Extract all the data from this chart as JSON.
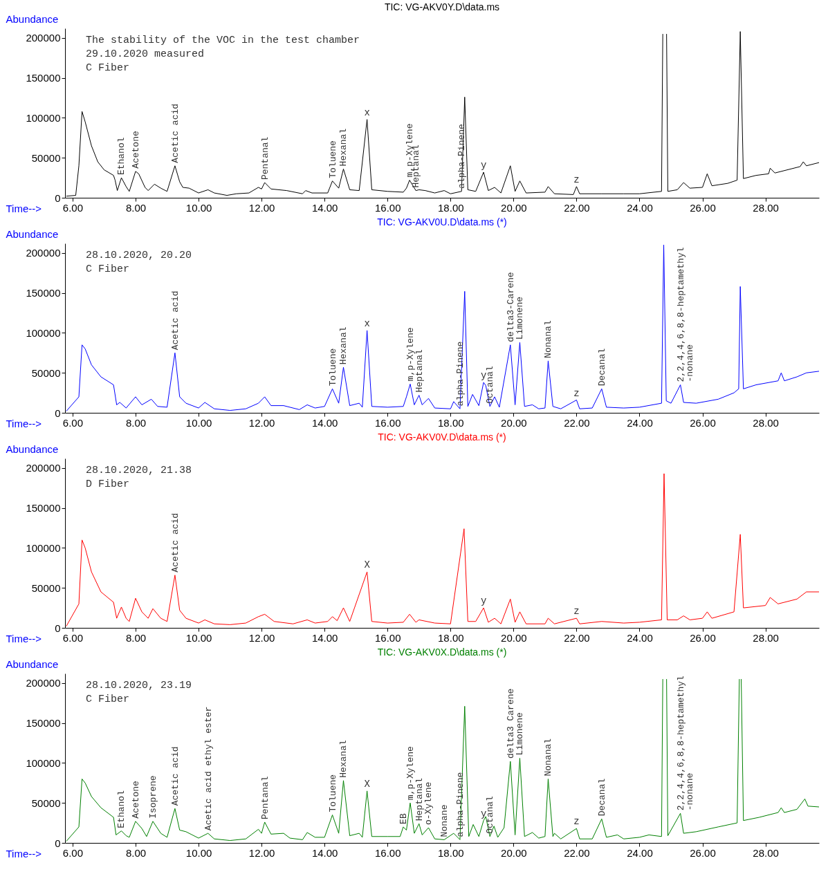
{
  "chart_data": [
    {
      "type": "line",
      "title": "TIC: VG-AKV0Y.D\\data.ms",
      "xlabel": "Time-->",
      "ylabel": "Abundance",
      "xlim": [
        5.76,
        29.7
      ],
      "ylim": [
        0,
        212000
      ],
      "xticks": [
        {
          "value": 6,
          "label": "6.00"
        },
        {
          "value": 8,
          "label": "8.00"
        },
        {
          "value": 10,
          "label": "10.00"
        },
        {
          "value": 12,
          "label": "12.00"
        },
        {
          "value": 14,
          "label": "14.00"
        },
        {
          "value": 16,
          "label": "16.00"
        },
        {
          "value": 18,
          "label": "18.00"
        },
        {
          "value": 20,
          "label": "20.00"
        },
        {
          "value": 22,
          "label": "22.00"
        },
        {
          "value": 24,
          "label": "24.00"
        },
        {
          "value": 26,
          "label": "26.00"
        },
        {
          "value": 28,
          "label": "28.00"
        }
      ],
      "yticks": [
        0,
        50000,
        100000,
        150000,
        200000
      ],
      "x": [
        5.8,
        6.1,
        6.2,
        6.3,
        6.4,
        6.6,
        6.8,
        7.0,
        7.3,
        7.35,
        7.42,
        7.55,
        7.7,
        7.8,
        8.0,
        8.1,
        8.3,
        8.4,
        8.6,
        8.8,
        9.0,
        9.25,
        9.4,
        9.5,
        9.7,
        10.0,
        10.3,
        10.5,
        10.9,
        11.2,
        11.6,
        11.9,
        12.0,
        12.1,
        12.3,
        12.8,
        13.3,
        13.4,
        13.6,
        14.1,
        14.25,
        14.45,
        14.6,
        14.8,
        15.1,
        15.35,
        15.5,
        16.0,
        16.5,
        16.6,
        16.7,
        16.9,
        17.0,
        17.2,
        17.5,
        17.8,
        18.0,
        18.35,
        18.45,
        18.55,
        18.8,
        19.05,
        19.2,
        19.4,
        19.6,
        19.9,
        20.05,
        20.2,
        20.4,
        21.0,
        21.1,
        21.3,
        21.9,
        22.0,
        22.1,
        22.8,
        23.5,
        24.0,
        24.7,
        24.74,
        24.8,
        24.86,
        24.9,
        25.2,
        25.4,
        25.6,
        26.0,
        26.15,
        26.3,
        26.8,
        27.1,
        27.2,
        27.3,
        27.7,
        28.1,
        28.15,
        28.3,
        28.8,
        29.1,
        29.2,
        29.3,
        29.7
      ],
      "series": [
        {
          "color": "#000000",
          "values": [
            2000,
            3000,
            40000,
            108000,
            95000,
            65000,
            45000,
            35000,
            28000,
            22000,
            9000,
            25000,
            14000,
            8000,
            33000,
            30000,
            13000,
            9000,
            17000,
            12000,
            8000,
            40000,
            20000,
            13000,
            12000,
            6000,
            10000,
            6000,
            3000,
            5000,
            6000,
            13000,
            11000,
            19000,
            11000,
            9000,
            5000,
            9000,
            6000,
            6000,
            21000,
            12000,
            36000,
            10000,
            9000,
            98000,
            10000,
            8000,
            7000,
            12000,
            22000,
            9000,
            10000,
            9000,
            6000,
            9000,
            5000,
            8000,
            126000,
            10000,
            8000,
            32000,
            9000,
            13000,
            6000,
            40000,
            8000,
            21000,
            6000,
            7000,
            14000,
            5000,
            4000,
            14000,
            5000,
            5000,
            5000,
            5000,
            8000,
            205000,
            null,
            205000,
            8000,
            10000,
            19000,
            12000,
            13000,
            30000,
            15000,
            18000,
            22000,
            208000,
            24000,
            28000,
            30000,
            37000,
            31000,
            36000,
            39000,
            45000,
            40000,
            44000
          ]
        }
      ],
      "annotations": [
        "The stability of the VOC in the test chamber",
        "29.10.2020 measured",
        "C Fiber",
        {
          "text": "Ethanol",
          "x": 7.55,
          "y": 25000
        },
        {
          "text": "Acetone",
          "x": 8.0,
          "y": 33000
        },
        {
          "text": "Acetic acid",
          "x": 9.25,
          "y": 40000
        },
        {
          "text": "Pentanal",
          "x": 12.1,
          "y": 19000
        },
        {
          "text": "Toluene",
          "x": 14.25,
          "y": 21000
        },
        {
          "text": "Hexanal",
          "x": 14.6,
          "y": 36000
        },
        {
          "text": "x",
          "x": 15.35,
          "y": 98000
        },
        {
          "text": "m,p-Xylene",
          "x": 16.7,
          "y": 22000
        },
        {
          "text": "Heptanal",
          "x": 16.9,
          "y": 9000
        },
        {
          "text": "alpha-Pinene",
          "x": 18.35,
          "y": 8000
        },
        {
          "text": "y",
          "x": 19.05,
          "y": 32000
        },
        {
          "text": "z",
          "x": 22.0,
          "y": 14000
        }
      ]
    },
    {
      "type": "line",
      "title": "TIC: VG-AKV0U.D\\data.ms (*)",
      "xlabel": "Time-->",
      "ylabel": "Abundance",
      "xlim": [
        5.76,
        29.7
      ],
      "ylim": [
        0,
        212000
      ],
      "xticks": [
        {
          "value": 6,
          "label": "6.00"
        },
        {
          "value": 8,
          "label": "8.00"
        },
        {
          "value": 10,
          "label": "10.00"
        },
        {
          "value": 12,
          "label": "12.00"
        },
        {
          "value": 14,
          "label": "14.00"
        },
        {
          "value": 16,
          "label": "16.00"
        },
        {
          "value": 18,
          "label": "18.00"
        },
        {
          "value": 20,
          "label": "20.00"
        },
        {
          "value": 22,
          "label": "22.00"
        },
        {
          "value": 24,
          "label": "24.00"
        },
        {
          "value": 26,
          "label": "26.00"
        },
        {
          "value": 28,
          "label": "28.00"
        }
      ],
      "yticks": [
        0,
        50000,
        100000,
        150000,
        200000
      ],
      "x": [
        5.8,
        6.2,
        6.3,
        6.4,
        6.6,
        6.9,
        7.3,
        7.4,
        7.5,
        7.7,
        8.0,
        8.2,
        8.5,
        8.7,
        9.0,
        9.25,
        9.4,
        9.6,
        10.0,
        10.2,
        10.5,
        11.0,
        11.5,
        11.9,
        12.1,
        12.3,
        12.7,
        13.2,
        13.45,
        13.7,
        14.0,
        14.25,
        14.45,
        14.6,
        14.8,
        15.1,
        15.2,
        15.35,
        15.5,
        16.0,
        16.5,
        16.6,
        16.72,
        16.85,
        17.0,
        17.1,
        17.3,
        17.5,
        18.0,
        18.1,
        18.3,
        18.45,
        18.55,
        18.7,
        18.9,
        19.05,
        19.12,
        19.25,
        19.4,
        19.55,
        19.9,
        20.05,
        20.2,
        20.35,
        20.6,
        20.8,
        21.0,
        21.1,
        21.25,
        21.5,
        22.0,
        22.1,
        22.5,
        22.8,
        22.95,
        23.5,
        24.0,
        24.7,
        24.77,
        24.85,
        25.0,
        25.3,
        25.4,
        25.8,
        26.5,
        27.0,
        27.15,
        27.2,
        27.3,
        27.7,
        28.4,
        28.5,
        28.6,
        29.0,
        29.3,
        29.7
      ],
      "series": [
        {
          "color": "#0000ff",
          "values": [
            2000,
            20000,
            85000,
            80000,
            60000,
            45000,
            35000,
            10000,
            13000,
            6000,
            20000,
            10000,
            17000,
            8000,
            7000,
            75000,
            20000,
            12000,
            6000,
            13000,
            5000,
            3000,
            5000,
            12000,
            20000,
            9000,
            9000,
            4000,
            10000,
            6000,
            8000,
            30000,
            12000,
            57000,
            9000,
            12000,
            7000,
            103000,
            8000,
            7000,
            8000,
            20000,
            36000,
            10000,
            22000,
            10000,
            18000,
            6000,
            5000,
            14000,
            5000,
            152000,
            8000,
            23000,
            9000,
            38000,
            34000,
            8000,
            20000,
            7000,
            85000,
            10000,
            88000,
            8000,
            10000,
            5000,
            6000,
            65000,
            8000,
            5000,
            16000,
            5000,
            6000,
            30000,
            7000,
            6000,
            7000,
            12000,
            210000,
            15000,
            12000,
            35000,
            13000,
            12000,
            17000,
            25000,
            30000,
            158000,
            30000,
            35000,
            40000,
            50000,
            40000,
            45000,
            50000,
            52000
          ]
        }
      ],
      "annotations": [
        "28.10.2020, 20.20",
        "C Fiber",
        {
          "text": "Acetic acid",
          "x": 9.25,
          "y": 75000
        },
        {
          "text": "Toluene",
          "x": 14.25,
          "y": 30000
        },
        {
          "text": "Hexanal",
          "x": 14.6,
          "y": 57000
        },
        {
          "text": "x",
          "x": 15.35,
          "y": 103000
        },
        {
          "text": "m,p-Xylene",
          "x": 16.72,
          "y": 36000
        },
        {
          "text": "Heptanal",
          "x": 17.0,
          "y": 22000
        },
        {
          "text": "alpha-Pinene",
          "x": 18.3,
          "y": 5000
        },
        {
          "text": "y",
          "x": 19.05,
          "y": 38000
        },
        {
          "text": "Octanal",
          "x": 19.25,
          "y": 8000
        },
        {
          "text": "delta3-Carene",
          "x": 19.9,
          "y": 85000
        },
        {
          "text": "Limonene",
          "x": 20.2,
          "y": 88000
        },
        {
          "text": "Nonanal",
          "x": 21.1,
          "y": 65000
        },
        {
          "text": "z",
          "x": 22.0,
          "y": 16000
        },
        {
          "text": "Decanal",
          "x": 22.8,
          "y": 30000
        },
        {
          "text": "2,2,4,4,6,8,8-heptamethyl\n-nonane",
          "x": 25.3,
          "y": 35000
        }
      ]
    },
    {
      "type": "line",
      "title": "TIC: VG-AKV0V.D\\data.ms (*)",
      "xlabel": "Time-->",
      "ylabel": "Abundance",
      "xlim": [
        5.76,
        29.7
      ],
      "ylim": [
        0,
        212000
      ],
      "xticks": [
        {
          "value": 6,
          "label": "6.00"
        },
        {
          "value": 8,
          "label": "8.00"
        },
        {
          "value": 10,
          "label": "10.00"
        },
        {
          "value": 12,
          "label": "12.00"
        },
        {
          "value": 14,
          "label": "14.00"
        },
        {
          "value": 16,
          "label": "16.00"
        },
        {
          "value": 18,
          "label": "18.00"
        },
        {
          "value": 20,
          "label": "20.00"
        },
        {
          "value": 22,
          "label": "22.00"
        },
        {
          "value": 24,
          "label": "24.00"
        },
        {
          "value": 26,
          "label": "26.00"
        },
        {
          "value": 28,
          "label": "28.00"
        }
      ],
      "yticks": [
        0,
        50000,
        100000,
        150000,
        200000
      ],
      "x": [
        5.8,
        6.2,
        6.3,
        6.4,
        6.6,
        6.9,
        7.3,
        7.4,
        7.55,
        7.7,
        7.8,
        8.0,
        8.2,
        8.4,
        8.55,
        8.8,
        9.0,
        9.25,
        9.4,
        9.6,
        10.0,
        10.2,
        10.5,
        11.0,
        11.5,
        11.9,
        12.1,
        12.4,
        13.0,
        13.45,
        13.7,
        14.1,
        14.25,
        14.4,
        14.6,
        14.8,
        15.35,
        15.5,
        16.0,
        16.5,
        16.7,
        16.9,
        17.0,
        17.5,
        18.0,
        18.43,
        18.55,
        18.8,
        19.05,
        19.2,
        19.4,
        19.6,
        19.9,
        20.05,
        20.2,
        20.4,
        21.0,
        21.1,
        21.3,
        22.0,
        22.1,
        22.8,
        23.5,
        24.0,
        24.7,
        24.78,
        24.88,
        25.2,
        25.4,
        25.6,
        26.0,
        26.15,
        26.3,
        27.0,
        27.2,
        27.3,
        28.0,
        28.15,
        28.4,
        29.0,
        29.3,
        29.7
      ],
      "series": [
        {
          "color": "#ff0000",
          "values": [
            2000,
            30000,
            110000,
            100000,
            70000,
            45000,
            32000,
            12000,
            26000,
            12000,
            8000,
            37000,
            20000,
            12000,
            24000,
            12000,
            8000,
            66000,
            22000,
            12000,
            6000,
            10000,
            5000,
            4000,
            6000,
            14000,
            17000,
            8000,
            5000,
            10000,
            6000,
            8000,
            14000,
            9000,
            25000,
            8000,
            70000,
            8000,
            6000,
            7000,
            17000,
            7000,
            10000,
            6000,
            5000,
            124000,
            8000,
            8000,
            25000,
            7000,
            12000,
            5000,
            36000,
            7000,
            20000,
            5000,
            5000,
            12000,
            5000,
            12000,
            5000,
            8000,
            6000,
            7000,
            10000,
            193000,
            10000,
            10000,
            15000,
            10000,
            12000,
            20000,
            12000,
            20000,
            117000,
            25000,
            28000,
            38000,
            30000,
            36000,
            45000,
            45000
          ]
        }
      ],
      "annotations": [
        "28.10.2020, 21.38",
        "D Fiber",
        {
          "text": "Acetic acid",
          "x": 9.25,
          "y": 66000
        },
        {
          "text": "X",
          "x": 15.35,
          "y": 70000
        },
        {
          "text": "y",
          "x": 19.05,
          "y": 25000
        },
        {
          "text": "z",
          "x": 22.0,
          "y": 12000
        }
      ]
    },
    {
      "type": "line",
      "title": "TIC: VG-AKV0X.D\\data.ms (*)",
      "xlabel": "Time-->",
      "ylabel": "Abundance",
      "xlim": [
        5.76,
        29.7
      ],
      "ylim": [
        0,
        212000
      ],
      "xticks": [
        {
          "value": 6,
          "label": "6.00"
        },
        {
          "value": 8,
          "label": "8.00"
        },
        {
          "value": 10,
          "label": "10.00"
        },
        {
          "value": 12,
          "label": "12.00"
        },
        {
          "value": 14,
          "label": "14.00"
        },
        {
          "value": 16,
          "label": "16.00"
        },
        {
          "value": 18,
          "label": "18.00"
        },
        {
          "value": 20,
          "label": "20.00"
        },
        {
          "value": 22,
          "label": "22.00"
        },
        {
          "value": 24,
          "label": "24.00"
        },
        {
          "value": 26,
          "label": "26.00"
        },
        {
          "value": 28,
          "label": "28.00"
        }
      ],
      "yticks": [
        0,
        50000,
        100000,
        150000,
        200000
      ],
      "x": [
        5.8,
        6.2,
        6.3,
        6.4,
        6.6,
        6.9,
        7.3,
        7.38,
        7.55,
        7.7,
        7.8,
        8.0,
        8.2,
        8.35,
        8.55,
        8.8,
        9.0,
        9.25,
        9.4,
        9.6,
        9.8,
        10.0,
        10.3,
        10.5,
        11.0,
        11.5,
        11.9,
        12.0,
        12.1,
        12.3,
        12.7,
        12.9,
        13.3,
        13.45,
        13.7,
        14.0,
        14.25,
        14.45,
        14.6,
        14.8,
        15.1,
        15.2,
        15.35,
        15.5,
        16.0,
        16.4,
        16.5,
        16.6,
        16.72,
        16.85,
        17.0,
        17.1,
        17.3,
        17.5,
        17.8,
        18.1,
        18.3,
        18.45,
        18.58,
        18.72,
        18.9,
        19.05,
        19.12,
        19.25,
        19.38,
        19.5,
        19.7,
        19.9,
        20.05,
        20.2,
        20.35,
        20.6,
        20.8,
        21.0,
        21.1,
        21.25,
        21.3,
        21.5,
        22.0,
        22.1,
        22.5,
        22.8,
        22.95,
        23.3,
        23.5,
        24.0,
        24.3,
        24.7,
        24.74,
        24.8,
        24.86,
        24.9,
        25.3,
        25.4,
        25.8,
        26.5,
        27.1,
        27.17,
        27.2,
        27.23,
        27.3,
        27.8,
        28.4,
        28.5,
        28.6,
        29.0,
        29.25,
        29.35,
        29.7
      ],
      "series": [
        {
          "color": "#008000",
          "values": [
            2000,
            20000,
            80000,
            75000,
            58000,
            44000,
            32000,
            10000,
            15000,
            9000,
            7000,
            27000,
            18000,
            8000,
            27000,
            12000,
            7000,
            43000,
            16000,
            14000,
            10000,
            6000,
            12000,
            5000,
            3000,
            5000,
            17000,
            12000,
            26000,
            11000,
            12000,
            6000,
            4000,
            13000,
            7000,
            7000,
            35000,
            12000,
            78000,
            9000,
            12000,
            7000,
            65000,
            8000,
            8000,
            8000,
            20000,
            16000,
            50000,
            12000,
            24000,
            10000,
            19000,
            5000,
            4000,
            12000,
            4000,
            171000,
            8000,
            23000,
            8000,
            28000,
            33000,
            8000,
            21000,
            7000,
            19000,
            102000,
            10000,
            106000,
            8000,
            13000,
            6000,
            8000,
            80000,
            8000,
            12000,
            5000,
            18000,
            5000,
            5000,
            30000,
            7000,
            10000,
            5000,
            7000,
            10000,
            8000,
            205000,
            null,
            205000,
            9000,
            37000,
            12000,
            14000,
            20000,
            25000,
            205000,
            null,
            205000,
            28000,
            32000,
            38000,
            44000,
            38000,
            42000,
            55000,
            46000,
            45000
          ]
        }
      ],
      "annotations": [
        "28.10.2020, 23.19",
        "C Fiber",
        {
          "text": "Ethanol",
          "x": 7.55,
          "y": 15000
        },
        {
          "text": "Acetone",
          "x": 8.0,
          "y": 27000
        },
        {
          "text": "Isoprene",
          "x": 8.55,
          "y": 27000
        },
        {
          "text": "Acetic acid",
          "x": 9.25,
          "y": 43000
        },
        {
          "text": "Acetic acid ethyl ester",
          "x": 10.3,
          "y": 12000
        },
        {
          "text": "Pentanal",
          "x": 12.1,
          "y": 26000
        },
        {
          "text": "Toluene",
          "x": 14.25,
          "y": 35000
        },
        {
          "text": "Hexanal",
          "x": 14.6,
          "y": 78000
        },
        {
          "text": "X",
          "x": 15.35,
          "y": 65000
        },
        {
          "text": "EB",
          "x": 16.5,
          "y": 20000
        },
        {
          "text": "m,p-Xylene",
          "x": 16.72,
          "y": 50000
        },
        {
          "text": "Heptanal",
          "x": 17.0,
          "y": 24000
        },
        {
          "text": "o-Xylene",
          "x": 17.3,
          "y": 19000
        },
        {
          "text": "Nonane",
          "x": 17.8,
          "y": 4000
        },
        {
          "text": "alpha-Pinene",
          "x": 18.3,
          "y": 4000
        },
        {
          "text": "y",
          "x": 19.05,
          "y": 28000
        },
        {
          "text": "Octanal",
          "x": 19.25,
          "y": 8000
        },
        {
          "text": "delta3 Carene",
          "x": 19.9,
          "y": 102000
        },
        {
          "text": "Limonene",
          "x": 20.2,
          "y": 106000
        },
        {
          "text": "Nonanal",
          "x": 21.1,
          "y": 80000
        },
        {
          "text": "z",
          "x": 22.0,
          "y": 18000
        },
        {
          "text": "Decanal",
          "x": 22.8,
          "y": 30000
        },
        {
          "text": "2,2,4,4,6,8,8-heptamethyl\n-nonane",
          "x": 25.3,
          "y": 37000
        }
      ]
    }
  ]
}
